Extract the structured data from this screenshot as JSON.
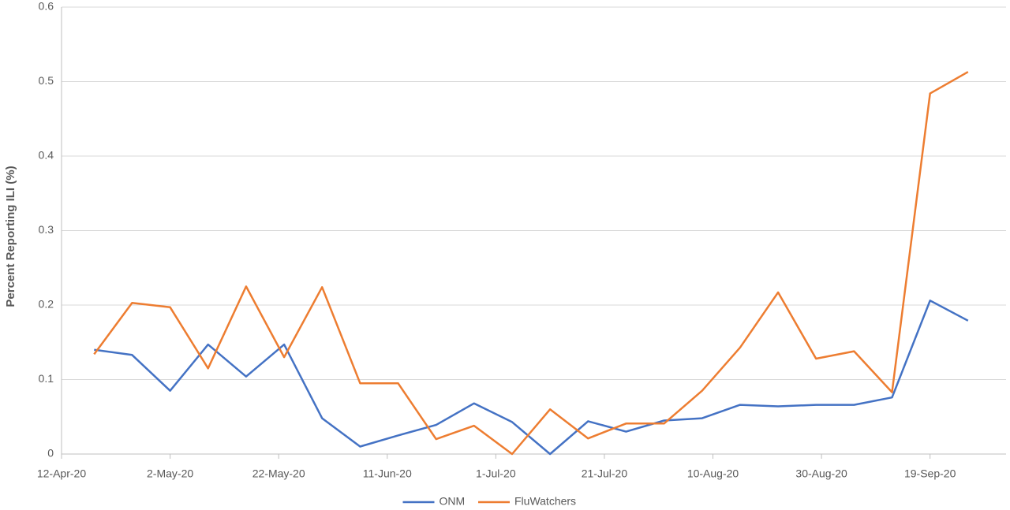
{
  "chart_data": {
    "type": "line",
    "y_label": "Percent Reporting ILI (%)",
    "x": [
      "2020-04-18",
      "2020-04-25",
      "2020-05-02",
      "2020-05-09",
      "2020-05-16",
      "2020-05-23",
      "2020-05-30",
      "2020-06-06",
      "2020-06-13",
      "2020-06-20",
      "2020-06-27",
      "2020-07-04",
      "2020-07-11",
      "2020-07-18",
      "2020-07-25",
      "2020-08-01",
      "2020-08-08",
      "2020-08-15",
      "2020-08-22",
      "2020-08-29",
      "2020-09-05",
      "2020-09-12",
      "2020-09-19",
      "2020-09-26"
    ],
    "series": [
      {
        "name": "ONM",
        "color": "#4472c4",
        "values": [
          0.14,
          0.133,
          0.085,
          0.147,
          0.104,
          0.147,
          0.048,
          0.01,
          0.025,
          0.039,
          0.068,
          0.043,
          0.0,
          0.044,
          0.03,
          0.045,
          0.048,
          0.066,
          0.064,
          0.066,
          0.066,
          0.076,
          0.206,
          0.179
        ]
      },
      {
        "name": "FluWatchers",
        "color": "#ed7d31",
        "values": [
          0.134,
          0.203,
          0.197,
          0.115,
          0.225,
          0.13,
          0.224,
          0.095,
          0.095,
          0.02,
          0.038,
          0.0,
          0.06,
          0.021,
          0.041,
          0.041,
          0.085,
          0.143,
          0.217,
          0.128,
          0.138,
          0.083,
          0.484,
          0.513
        ]
      }
    ],
    "xlim": [
      "2020-04-12",
      "2020-10-03"
    ],
    "xticks": [
      {
        "value": "2020-04-12",
        "label": "12-Apr-20"
      },
      {
        "value": "2020-05-02",
        "label": "2-May-20"
      },
      {
        "value": "2020-05-22",
        "label": "22-May-20"
      },
      {
        "value": "2020-06-11",
        "label": "11-Jun-20"
      },
      {
        "value": "2020-07-01",
        "label": "1-Jul-20"
      },
      {
        "value": "2020-07-21",
        "label": "21-Jul-20"
      },
      {
        "value": "2020-08-10",
        "label": "10-Aug-20"
      },
      {
        "value": "2020-08-30",
        "label": "30-Aug-20"
      },
      {
        "value": "2020-09-19",
        "label": "19-Sep-20"
      }
    ],
    "ylim": [
      0,
      0.6
    ],
    "yticks": [
      0,
      0.1,
      0.2,
      0.3,
      0.4,
      0.5,
      0.6
    ],
    "grid": true,
    "legend": "bottom"
  }
}
